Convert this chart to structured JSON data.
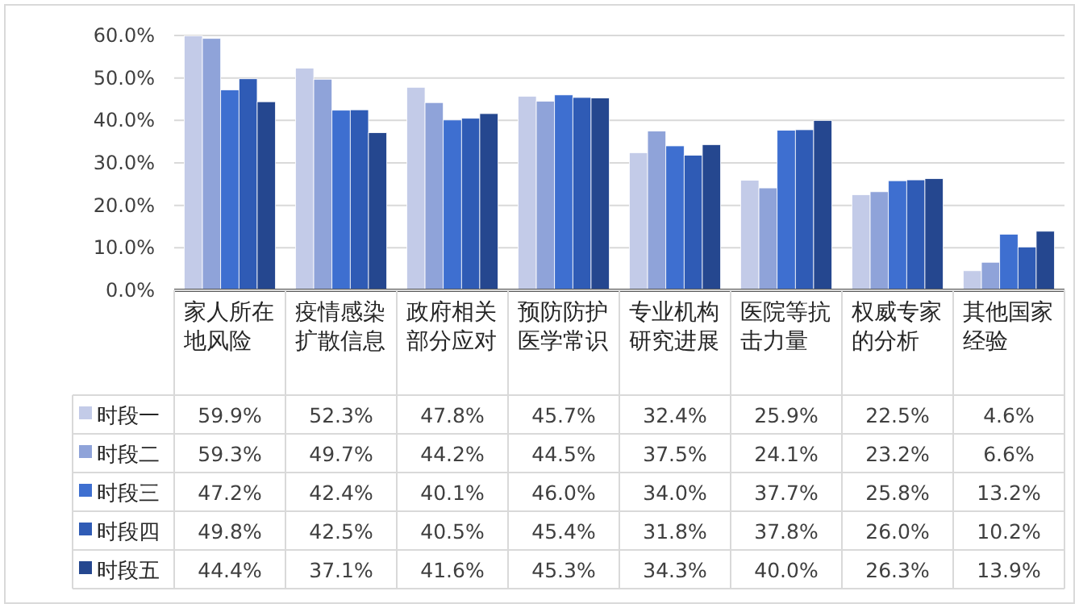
{
  "chart_data": {
    "type": "bar",
    "categories": [
      "家人所在地风险",
      "疫情感染扩散信息",
      "政府相关部分应对",
      "预防防护医学常识",
      "专业机构研究进展",
      "医院等抗击力量",
      "权威专家的分析",
      "其他国家经验"
    ],
    "series": [
      {
        "name": "时段一",
        "color": "#c3cbe8",
        "values": [
          59.9,
          52.3,
          47.8,
          45.7,
          32.4,
          25.9,
          22.5,
          4.6
        ],
        "value_labels": [
          "59.9%",
          "52.3%",
          "47.8%",
          "45.7%",
          "32.4%",
          "25.9%",
          "22.5%",
          "4.6%"
        ]
      },
      {
        "name": "时段二",
        "color": "#8fa3d9",
        "values": [
          59.3,
          49.7,
          44.2,
          44.5,
          37.5,
          24.1,
          23.2,
          6.6
        ],
        "value_labels": [
          "59.3%",
          "49.7%",
          "44.2%",
          "44.5%",
          "37.5%",
          "24.1%",
          "23.2%",
          "6.6%"
        ]
      },
      {
        "name": "时段三",
        "color": "#3e6fd0",
        "values": [
          47.2,
          42.4,
          40.1,
          46.0,
          34.0,
          37.7,
          25.8,
          13.2
        ],
        "value_labels": [
          "47.2%",
          "42.4%",
          "40.1%",
          "46.0%",
          "34.0%",
          "37.7%",
          "25.8%",
          "13.2%"
        ]
      },
      {
        "name": "时段四",
        "color": "#2f5bb5",
        "values": [
          49.8,
          42.5,
          40.5,
          45.4,
          31.8,
          37.8,
          26.0,
          10.2
        ],
        "value_labels": [
          "49.8%",
          "42.5%",
          "40.5%",
          "45.4%",
          "31.8%",
          "37.8%",
          "26.0%",
          "10.2%"
        ]
      },
      {
        "name": "时段五",
        "color": "#25478f",
        "values": [
          44.4,
          37.1,
          41.6,
          45.3,
          34.3,
          40.0,
          26.3,
          13.9
        ],
        "value_labels": [
          "44.4%",
          "37.1%",
          "41.6%",
          "45.3%",
          "34.3%",
          "40.0%",
          "26.3%",
          "13.9%"
        ]
      }
    ],
    "ylim": [
      0,
      60
    ],
    "yticks": [
      {
        "value": 0,
        "label": "0.0%"
      },
      {
        "value": 10,
        "label": "10.0%"
      },
      {
        "value": 20,
        "label": "20.0%"
      },
      {
        "value": 30,
        "label": "30.0%"
      },
      {
        "value": 40,
        "label": "40.0%"
      },
      {
        "value": 50,
        "label": "50.0%"
      },
      {
        "value": 60,
        "label": "60.0%"
      }
    ],
    "grid": "y",
    "legend": "bottom"
  }
}
